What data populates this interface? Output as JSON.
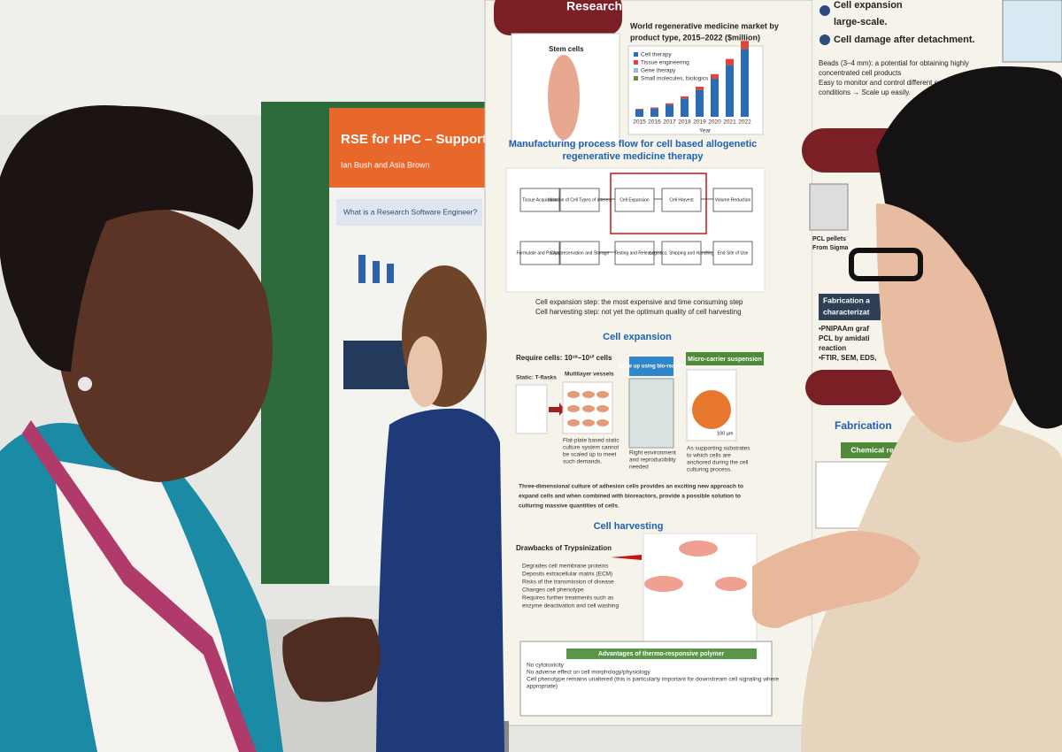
{
  "left_poster": {
    "title": "RSE for HPC – Support",
    "authors": "Ian Bush and Asia Brown",
    "section": "What is a Research Software Engineer?"
  },
  "main_poster": {
    "header": "Research",
    "stem_cells_label": "Stem cells",
    "market_chart": {
      "title_lines": [
        "World regenerative medicine market by",
        "product type, 2015–2022 ($million)"
      ],
      "legend": [
        "Cell therapy",
        "Tissue engineering",
        "Gene therapy",
        "Small molecules, biologics"
      ],
      "x_labels": [
        "2015",
        "2016",
        "2017",
        "2018",
        "2019",
        "2020",
        "2021",
        "2022"
      ],
      "x_title": "Year"
    },
    "manufacturing": {
      "heading_lines": [
        "Manufacturing process flow for cell based allogenetic",
        "regenerative medicine therapy"
      ],
      "steps_top": [
        "Tissue Acquisition",
        "Isolation of Cell Types of Interest",
        "Cell Expansion",
        "Cell Harvest",
        "Volume Reduction"
      ],
      "steps_bottom": [
        "Formulate and Package",
        "Cryopreservation and Storage",
        "Testing and Release",
        "Logistics, Shipping and Handling",
        "End Site of Use"
      ],
      "notes": [
        "Cell expansion step: the most expensive and time consuming step",
        "Cell harvesting step: not yet the optimum quality of cell harvesting"
      ]
    },
    "cell_expansion": {
      "heading": "Cell expansion",
      "requirement": "Require cells: 10¹⁰–10¹² cells",
      "static": "Static: T-flasks",
      "multilayer": "Multilayer vessels",
      "bioreactor": "Scale up using bio-reactor",
      "microcarrier": "Micro-carrier suspension",
      "static_caption_lines": [
        "Flat-plate based static",
        "culture system cannot",
        "be scaled up to meet",
        "such demands."
      ],
      "bioreactor_caption_lines": [
        "Right environment",
        "and reproducibility",
        "needed"
      ],
      "microcarrier_caption_lines": [
        "As supporting substrates",
        "to which cells are",
        "anchored during the cell",
        "culturing process."
      ],
      "scale": "100 µm",
      "summary_lines": [
        "Three-dimensional culture of adhesion cells provides an exciting new approach to",
        "expand cells and when combined with bioreactors, provide a possible solution to",
        "culturing massive quantities of cells."
      ]
    },
    "cell_harvesting": {
      "heading": "Cell harvesting",
      "drawbacks_title": "Drawbacks of Trypsinization",
      "drawbacks": [
        "Degrades cell membrane proteins",
        "Deposits extracellular matrix (ECM)",
        "Risks of the transmission of disease",
        "Changes cell phenotype",
        "Requires further treatments such as",
        "enzyme deactivation and cell washing"
      ],
      "advantages_title": "Advantages of thermo-responsive polymer",
      "advantages": [
        "No cytotoxicity",
        "No adverse effect on cell morphology/physiology",
        "Cell phenotype remains unaltered (this is particularly important for downstream cell signaling where",
        "appropriate)"
      ]
    }
  },
  "right_poster": {
    "point_1": "Cell expansion",
    "point_1_cont": "large-scale.",
    "point_2": "Cell damage after detachment.",
    "bullets": [
      "Beads (3–4 mm): a potential for obtaining highly",
      "concentrated cell products",
      "Easy to monitor and control different environmental",
      "conditions → Scale up easily."
    ],
    "pellets": [
      "PCL pellets",
      "From Sigma"
    ],
    "fabrication_box": [
      "Fabrication a",
      "characterizat"
    ],
    "fabrication_notes": [
      "•PNIPAAm graf",
      "PCL by amidati",
      "reaction",
      "•FTIR, SEM, EDS,"
    ],
    "fabrication_heading": "Fabrication",
    "chemical_reaction": "Chemical reaction"
  }
}
